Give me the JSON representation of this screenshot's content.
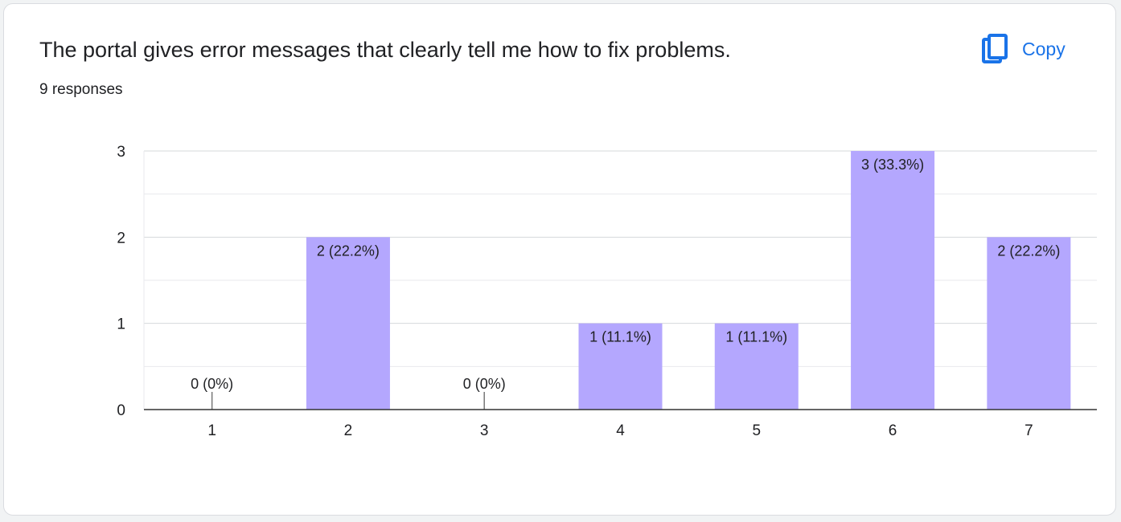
{
  "question": {
    "title": "The portal gives error messages that clearly tell me how to fix problems.",
    "responses": "9 responses"
  },
  "toolbar": {
    "copy_label": "Copy",
    "copy_icon": "copy-icon"
  },
  "colors": {
    "bar": "#b4a7fe",
    "accent": "#1a73e8",
    "grid": "#e8eaed",
    "axis": "#333333"
  },
  "chart_data": {
    "type": "bar",
    "categories": [
      "1",
      "2",
      "3",
      "4",
      "5",
      "6",
      "7"
    ],
    "values": [
      0,
      2,
      0,
      1,
      1,
      3,
      2
    ],
    "labels": [
      "0 (0%)",
      "2 (22.2%)",
      "0 (0%)",
      "1 (11.1%)",
      "1 (11.1%)",
      "3 (33.3%)",
      "2 (22.2%)"
    ],
    "y_ticks": [
      "0",
      "1",
      "2",
      "3"
    ],
    "ylim": [
      0,
      3
    ],
    "grid": true,
    "legend": "none",
    "title": "",
    "xlabel": "",
    "ylabel": ""
  }
}
